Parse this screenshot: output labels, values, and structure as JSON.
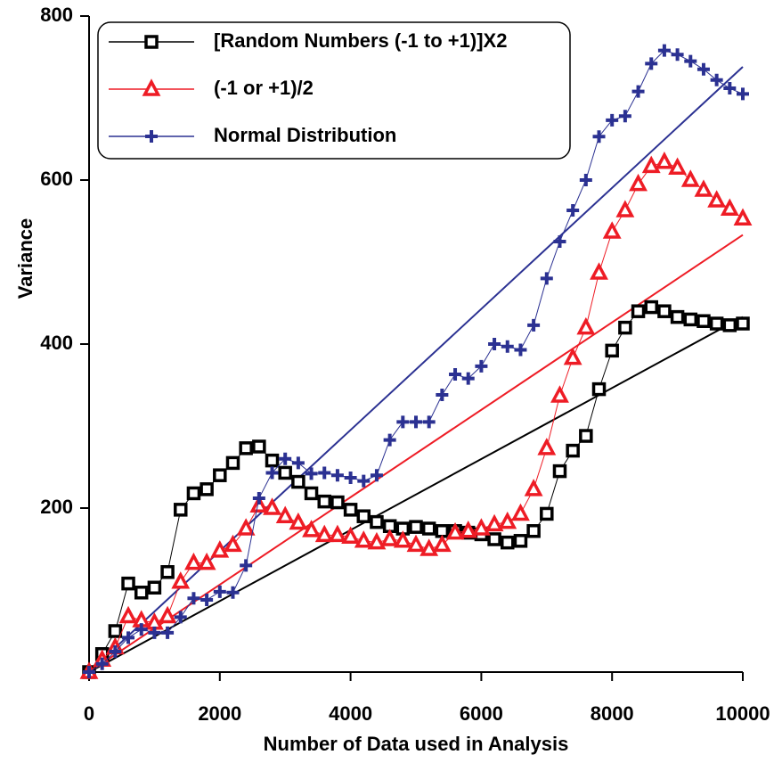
{
  "chart_data": {
    "type": "line",
    "xlabel": "Number of Data used in Analysis",
    "ylabel": "Variance",
    "xlim": [
      0,
      10000
    ],
    "xticks": [
      0,
      2000,
      4000,
      6000,
      8000,
      10000
    ],
    "ylim": [
      0,
      800
    ],
    "yticks": [
      200,
      400,
      600,
      800
    ],
    "legend": "upper left",
    "x": [
      0,
      200,
      400,
      600,
      800,
      1000,
      1200,
      1400,
      1600,
      1800,
      2000,
      2200,
      2400,
      2600,
      2800,
      3000,
      3200,
      3400,
      3600,
      3800,
      4000,
      4200,
      4400,
      4600,
      4800,
      5000,
      5200,
      5400,
      5600,
      5800,
      6000,
      6200,
      6400,
      6600,
      6800,
      7000,
      7200,
      7400,
      7600,
      7800,
      8000,
      8200,
      8400,
      8600,
      8800,
      9000,
      9200,
      9400,
      9600,
      9800,
      10000
    ],
    "series": [
      {
        "name": "[Random Numbers (-1 to +1)]X2",
        "color": "#000000",
        "marker": "square",
        "values": [
          0,
          22,
          50,
          108,
          97,
          103,
          122,
          198,
          218,
          223,
          240,
          255,
          273,
          275,
          258,
          243,
          232,
          218,
          208,
          207,
          198,
          190,
          183,
          178,
          175,
          177,
          175,
          172,
          172,
          170,
          168,
          162,
          158,
          160,
          172,
          193,
          245,
          270,
          288,
          345,
          392,
          420,
          440,
          445,
          440,
          433,
          430,
          428,
          425,
          423,
          425
        ]
      },
      {
        "name": "(-1 or +1)/2",
        "color": "#ee1c25",
        "marker": "triangle",
        "values": [
          0,
          15,
          30,
          68,
          63,
          60,
          68,
          110,
          133,
          133,
          148,
          155,
          175,
          203,
          200,
          190,
          182,
          173,
          167,
          167,
          165,
          160,
          158,
          162,
          160,
          155,
          150,
          155,
          170,
          172,
          175,
          180,
          183,
          193,
          223,
          273,
          337,
          383,
          420,
          487,
          537,
          563,
          595,
          617,
          622,
          615,
          600,
          588,
          575,
          565,
          553
        ]
      },
      {
        "name": "Normal Distribution",
        "color": "#2b3192",
        "marker": "plus",
        "values": [
          0,
          10,
          25,
          42,
          52,
          48,
          48,
          67,
          90,
          88,
          98,
          97,
          130,
          212,
          243,
          260,
          255,
          242,
          243,
          240,
          237,
          233,
          240,
          283,
          305,
          305,
          305,
          338,
          363,
          358,
          373,
          400,
          397,
          393,
          423,
          480,
          525,
          563,
          600,
          653,
          673,
          678,
          708,
          742,
          758,
          753,
          745,
          735,
          722,
          712,
          705
        ]
      }
    ],
    "fits": [
      {
        "color": "#000000",
        "x": [
          0,
          10000
        ],
        "values": [
          0,
          433
        ]
      },
      {
        "color": "#ee1c25",
        "x": [
          0,
          10000
        ],
        "values": [
          0,
          533
        ]
      },
      {
        "color": "#2b3192",
        "x": [
          0,
          10000
        ],
        "values": [
          0,
          738
        ]
      }
    ]
  }
}
